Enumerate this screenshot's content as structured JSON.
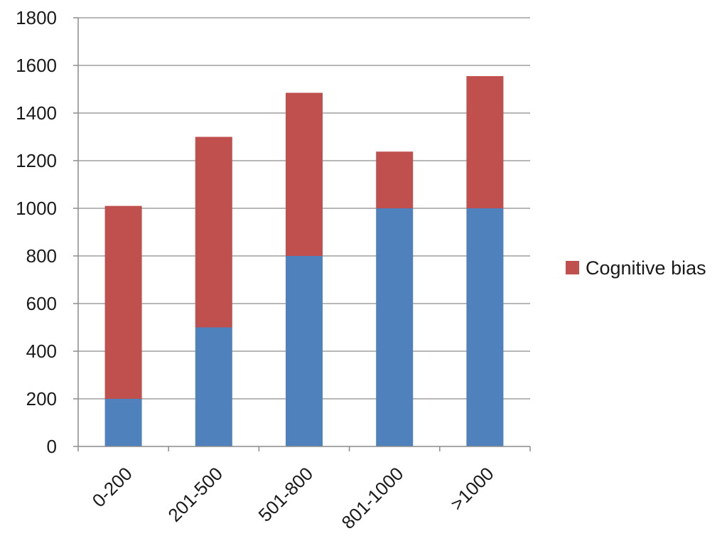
{
  "chart_data": {
    "type": "bar",
    "stacked": true,
    "categories": [
      "0-200",
      "201-500",
      "501-800",
      "801-1000",
      ">1000"
    ],
    "series": [
      {
        "values": [
          200,
          500,
          800,
          1000,
          1000
        ]
      },
      {
        "name": "Cognitive bias",
        "values": [
          810,
          800,
          685,
          238,
          555
        ]
      }
    ],
    "ylim": [
      0,
      1800
    ],
    "yticks": [
      0,
      200,
      400,
      600,
      800,
      1000,
      1200,
      1400,
      1600,
      1800
    ],
    "grid": true,
    "legend_position": "right",
    "colors": [
      "#4F81BD",
      "#C0504D"
    ],
    "title": "",
    "xlabel": "",
    "ylabel": ""
  }
}
